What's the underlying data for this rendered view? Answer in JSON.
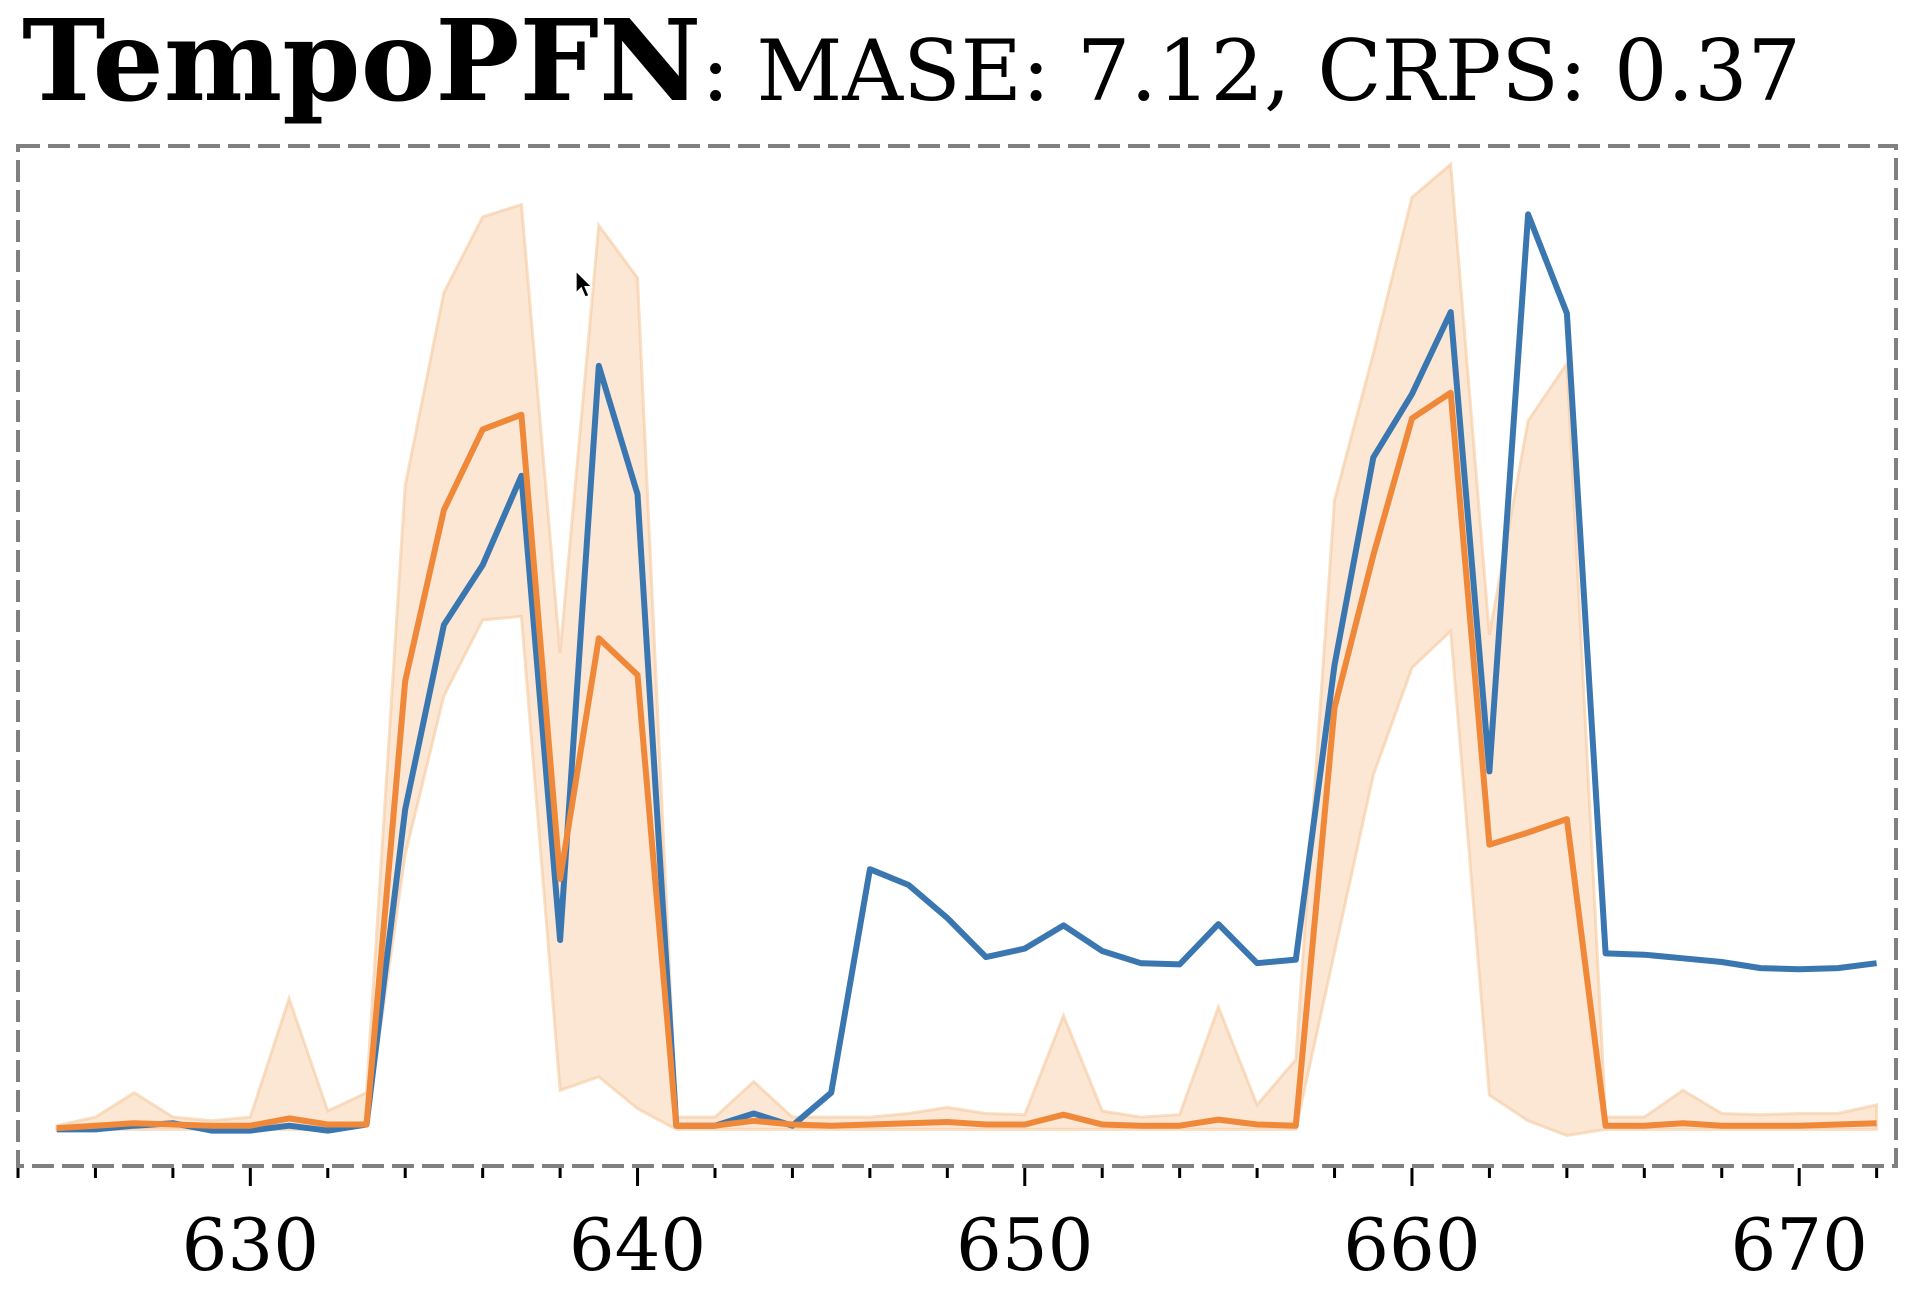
{
  "chart_data": {
    "type": "line",
    "title": {
      "model": "TempoPFN",
      "metrics": ": MASE: 7.12, CRPS: 0.37"
    },
    "xlabel": "",
    "ylabel": "",
    "xlim": [
      624,
      672.5
    ],
    "ylim": [
      -3.3,
      80.2
    ],
    "grid": false,
    "legend": "none",
    "x_tick_labels": [
      "630",
      "640",
      "650",
      "660",
      "670"
    ],
    "x_ticks_major": [
      630,
      640,
      650,
      660,
      670
    ],
    "x_ticks_minor_step": 2,
    "x": [
      625,
      626,
      627,
      628,
      629,
      630,
      631,
      632,
      633,
      634,
      635,
      636,
      637,
      638,
      639,
      640,
      641,
      642,
      643,
      644,
      645,
      646,
      647,
      648,
      649,
      650,
      651,
      652,
      653,
      654,
      655,
      656,
      657,
      658,
      659,
      660,
      661,
      662,
      663,
      664,
      665,
      666,
      667,
      668,
      669,
      670,
      671,
      672
    ],
    "series": [
      {
        "name": "actual",
        "color": "#3a76b0",
        "values": [
          -0.3,
          -0.3,
          0,
          0.2,
          -0.4,
          -0.4,
          0,
          -0.4,
          0.1,
          25.9,
          41.0,
          45.9,
          53.2,
          15.2,
          62.2,
          51.7,
          0,
          0,
          1.0,
          0,
          2.7,
          21.0,
          19.7,
          17.0,
          13.8,
          14.5,
          16.4,
          14.3,
          13.3,
          13.2,
          16.5,
          13.3,
          13.6,
          37.7,
          54.7,
          59.9,
          66.6,
          29.0,
          74.6,
          66.5,
          14.1,
          14.0,
          13.7,
          13.4,
          12.9,
          12.8,
          12.9,
          13.3
        ]
      },
      {
        "name": "forecast-median",
        "color": "#f0883a",
        "values": [
          -0.2,
          0,
          0.2,
          0.1,
          0,
          0,
          0.6,
          0.1,
          0.1,
          36.4,
          50.4,
          57.0,
          58.2,
          20.2,
          39.9,
          36.9,
          0,
          0,
          0.4,
          0.1,
          0,
          0.1,
          0.2,
          0.3,
          0.1,
          0.1,
          0.9,
          0.1,
          0,
          0,
          0.5,
          0.1,
          0,
          34.2,
          46.7,
          57.9,
          60.0,
          23.0,
          24.0,
          25.1,
          0,
          0,
          0.2,
          0,
          0,
          0,
          0.1,
          0.2
        ]
      }
    ],
    "band": {
      "name": "forecast-interval",
      "color": "#f6c99f",
      "upper": [
        0,
        0.7,
        2.7,
        0.7,
        0.4,
        0.7,
        10.4,
        1.2,
        2.7,
        52.4,
        68.2,
        74.4,
        75.4,
        38.7,
        73.7,
        69.4,
        0.7,
        0.7,
        3.6,
        0.7,
        0.7,
        0.7,
        1.0,
        1.5,
        1.0,
        0.9,
        9.0,
        1.2,
        0.7,
        0.9,
        9.7,
        1.7,
        5.4,
        51.2,
        63.2,
        76.0,
        78.7,
        40.2,
        57.7,
        62.4,
        0.7,
        0.7,
        2.9,
        1.0,
        0.9,
        1.0,
        1.0,
        1.7
      ],
      "lower": [
        -0.3,
        -0.3,
        -0.3,
        -0.3,
        -0.3,
        -0.3,
        -0.3,
        -0.3,
        0,
        22.2,
        35.2,
        41.4,
        41.7,
        2.9,
        4.0,
        1.4,
        -0.3,
        -0.3,
        -0.3,
        -0.3,
        -0.3,
        -0.3,
        -0.3,
        -0.3,
        -0.3,
        -0.3,
        -0.3,
        -0.3,
        -0.3,
        -0.3,
        -0.3,
        -0.3,
        -0.3,
        14.2,
        28.7,
        37.5,
        40.5,
        2.5,
        0.4,
        -0.8,
        -0.3,
        -0.3,
        -0.3,
        -0.3,
        -0.3,
        -0.3,
        -0.3,
        -0.3
      ]
    }
  }
}
